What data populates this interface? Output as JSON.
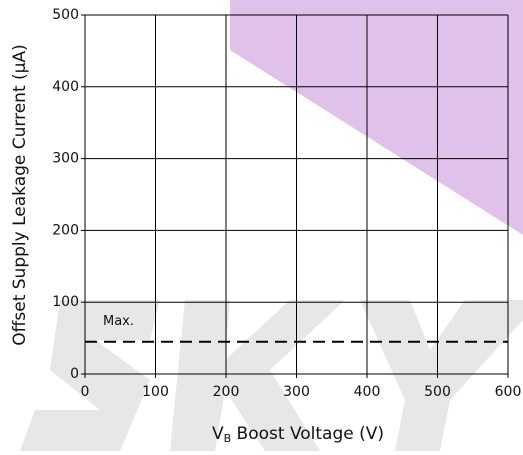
{
  "chart_data": {
    "type": "line",
    "y_label": "Offset Supply Leakage Current (μA)",
    "x_label": [
      "V",
      "B",
      " Boost Voltage (V)"
    ],
    "x": [
      0,
      600
    ],
    "series": [
      {
        "name": "Max.",
        "color": "#000000",
        "dashed": true,
        "values": [
          45,
          45
        ]
      }
    ],
    "xlim": [
      0,
      600
    ],
    "xticks": [
      0,
      100,
      200,
      300,
      400,
      500,
      600
    ],
    "ylim": [
      0,
      500
    ],
    "yticks": [
      0,
      100,
      200,
      300,
      400,
      500
    ],
    "grid": true
  }
}
